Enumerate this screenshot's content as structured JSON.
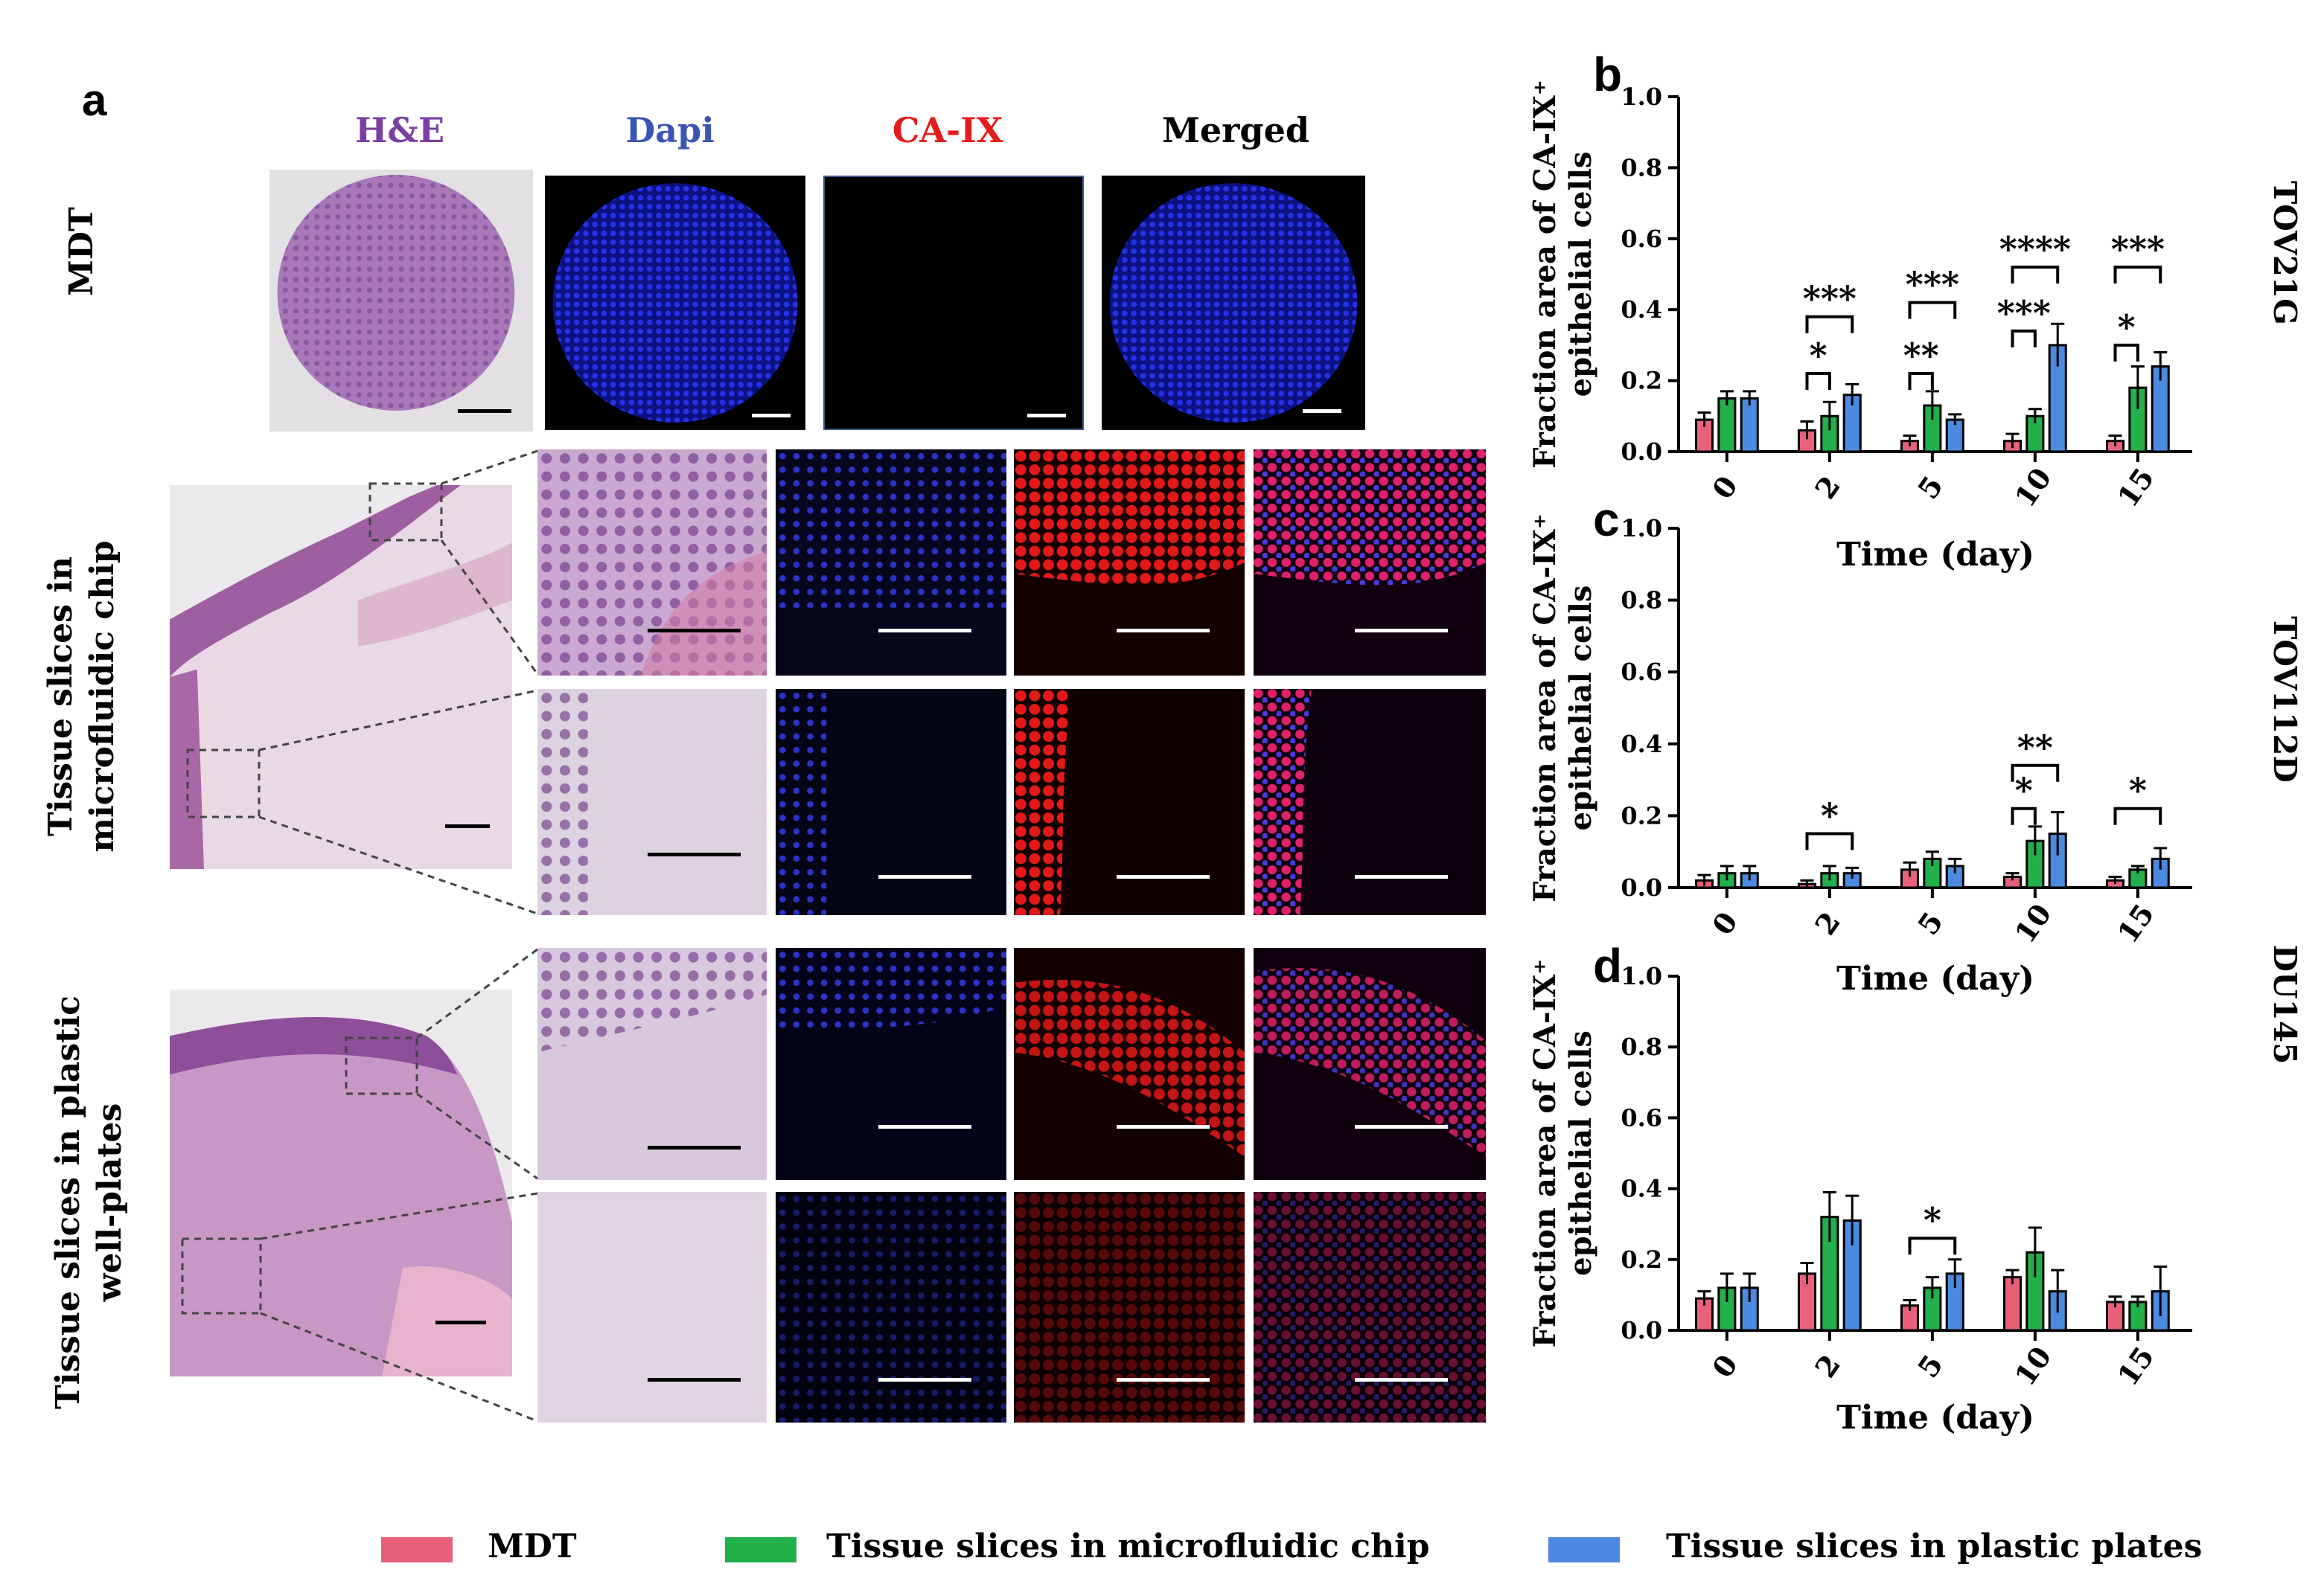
{
  "panel_a": {
    "letter": "a",
    "columns": [
      "H&E",
      "Dapi",
      "CA-IX",
      "Merged"
    ],
    "column_colors": [
      "#7b3fa4",
      "#3a55b4",
      "#e51c1c",
      "#000000"
    ],
    "rows": [
      "MDT",
      "Tissue slices in microfluidic chip",
      "Tissue slices in plastic well-plates"
    ],
    "row_lines": [
      [
        "MDT"
      ],
      [
        "Tissue slices in",
        "microfluidic chip"
      ],
      [
        "Tissue slices in plastic",
        "well-plates"
      ]
    ]
  },
  "colors": {
    "mdt": "#e8607a",
    "chip": "#22b04a",
    "plate": "#4b8ae0"
  },
  "legend": [
    "MDT",
    "Tissue slices in microfluidic chip",
    "Tissue slices in plastic plates"
  ],
  "chart_data": [
    {
      "panel": "b",
      "type": "bar",
      "cell_line": "TOV21G",
      "categories": [
        "0",
        "2",
        "5",
        "10",
        "15"
      ],
      "xlabel": "Time (day)",
      "ylabel_lines": [
        "Fraction area of CA-IX⁺",
        "epithelial cells"
      ],
      "ylim": [
        0,
        1.0
      ],
      "yticks": [
        "0.0",
        "0.2",
        "0.4",
        "0.6",
        "0.8",
        "1.0"
      ],
      "series": [
        {
          "name": "MDT",
          "values": [
            0.09,
            0.06,
            0.03,
            0.03,
            0.03
          ],
          "errors": [
            0.02,
            0.025,
            0.015,
            0.02,
            0.015
          ]
        },
        {
          "name": "Tissue slices in microfluidic chip",
          "values": [
            0.15,
            0.1,
            0.13,
            0.1,
            0.18
          ],
          "errors": [
            0.02,
            0.04,
            0.04,
            0.02,
            0.06
          ]
        },
        {
          "name": "Tissue slices in plastic plates",
          "values": [
            0.15,
            0.16,
            0.09,
            0.3,
            0.24
          ],
          "errors": [
            0.02,
            0.03,
            0.015,
            0.06,
            0.04
          ]
        }
      ],
      "significance": [
        {
          "cat": 1,
          "from": 0,
          "to": 1,
          "level": 0.22,
          "label": "*"
        },
        {
          "cat": 1,
          "from": 0,
          "to": 2,
          "level": 0.38,
          "label": "***"
        },
        {
          "cat": 2,
          "from": 0,
          "to": 1,
          "level": 0.22,
          "label": "**"
        },
        {
          "cat": 2,
          "from": 0,
          "to": 2,
          "level": 0.42,
          "label": "***"
        },
        {
          "cat": 3,
          "from": 0,
          "to": 1,
          "level": 0.34,
          "label": "***"
        },
        {
          "cat": 3,
          "from": 0,
          "to": 2,
          "level": 0.52,
          "label": "****"
        },
        {
          "cat": 4,
          "from": 0,
          "to": 1,
          "level": 0.3,
          "label": "*"
        },
        {
          "cat": 4,
          "from": 0,
          "to": 2,
          "level": 0.52,
          "label": "***"
        }
      ]
    },
    {
      "panel": "c",
      "type": "bar",
      "cell_line": "TOV112D",
      "categories": [
        "0",
        "2",
        "5",
        "10",
        "15"
      ],
      "xlabel": "Time (day)",
      "ylabel_lines": [
        "Fraction area of CA-IX⁺",
        "epithelial cells"
      ],
      "ylim": [
        0,
        1.0
      ],
      "yticks": [
        "0.0",
        "0.2",
        "0.4",
        "0.6",
        "0.8",
        "1.0"
      ],
      "series": [
        {
          "name": "MDT",
          "values": [
            0.02,
            0.01,
            0.05,
            0.03,
            0.02
          ],
          "errors": [
            0.015,
            0.01,
            0.02,
            0.01,
            0.01
          ]
        },
        {
          "name": "Tissue slices in microfluidic chip",
          "values": [
            0.04,
            0.04,
            0.08,
            0.13,
            0.05
          ],
          "errors": [
            0.02,
            0.02,
            0.02,
            0.04,
            0.01
          ]
        },
        {
          "name": "Tissue slices in plastic plates",
          "values": [
            0.04,
            0.04,
            0.06,
            0.15,
            0.08
          ],
          "errors": [
            0.02,
            0.015,
            0.02,
            0.06,
            0.03
          ]
        }
      ],
      "significance": [
        {
          "cat": 1,
          "from": 0,
          "to": 2,
          "level": 0.15,
          "label": "*"
        },
        {
          "cat": 3,
          "from": 0,
          "to": 1,
          "level": 0.22,
          "label": "*"
        },
        {
          "cat": 3,
          "from": 0,
          "to": 2,
          "level": 0.34,
          "label": "**"
        },
        {
          "cat": 4,
          "from": 0,
          "to": 2,
          "level": 0.22,
          "label": "*"
        }
      ]
    },
    {
      "panel": "d",
      "type": "bar",
      "cell_line": "DU145",
      "categories": [
        "0",
        "2",
        "5",
        "10",
        "15"
      ],
      "xlabel": "Time (day)",
      "ylabel_lines": [
        "Fraction area of CA-IX⁺",
        "epithelial cells"
      ],
      "ylim": [
        0,
        1.0
      ],
      "yticks": [
        "0.0",
        "0.2",
        "0.4",
        "0.6",
        "0.8",
        "1.0"
      ],
      "series": [
        {
          "name": "MDT",
          "values": [
            0.09,
            0.16,
            0.07,
            0.15,
            0.08
          ],
          "errors": [
            0.02,
            0.03,
            0.015,
            0.02,
            0.015
          ]
        },
        {
          "name": "Tissue slices in microfluidic chip",
          "values": [
            0.12,
            0.32,
            0.12,
            0.22,
            0.08
          ],
          "errors": [
            0.04,
            0.07,
            0.03,
            0.07,
            0.015
          ]
        },
        {
          "name": "Tissue slices in plastic plates",
          "values": [
            0.12,
            0.31,
            0.16,
            0.11,
            0.11
          ],
          "errors": [
            0.04,
            0.07,
            0.04,
            0.06,
            0.07
          ]
        }
      ],
      "significance": [
        {
          "cat": 2,
          "from": 0,
          "to": 2,
          "level": 0.26,
          "label": "*"
        }
      ]
    }
  ]
}
